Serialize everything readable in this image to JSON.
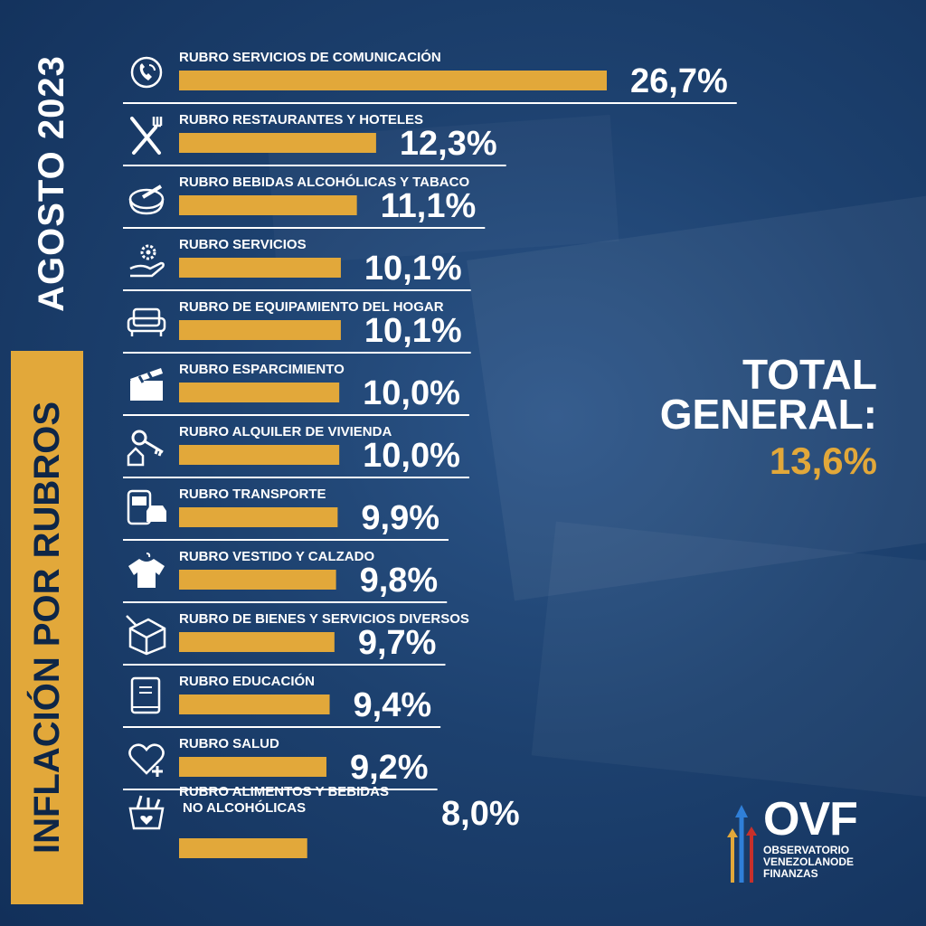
{
  "header": {
    "period": "AGOSTO 2023",
    "title": "INFLACIÓN POR RUBROS"
  },
  "total": {
    "label": "TOTAL GENERAL:",
    "value": "13,6%"
  },
  "logo": {
    "mark": "OVF",
    "line1": "OBSERVATORIO",
    "line2": "VENEZOLANODE",
    "line3": "FINANZAS"
  },
  "colors": {
    "bar": "#e2a83a",
    "background": "#1d416f",
    "text": "#ffffff"
  },
  "chart_data": {
    "type": "bar",
    "orientation": "horizontal",
    "title": "",
    "xlabel": "",
    "ylabel": "",
    "categories": [
      "RUBRO SERVICIOS DE COMUNICACIÓN",
      "RUBRO RESTAURANTES Y HOTELES",
      "RUBRO BEBIDAS ALCOHÓLICAS Y TABACO",
      "RUBRO SERVICIOS",
      "RUBRO DE EQUIPAMIENTO DEL HOGAR",
      "RUBRO ESPARCIMIENTO",
      "RUBRO ALQUILER DE VIVIENDA",
      "RUBRO TRANSPORTE",
      "RUBRO VESTIDO Y CALZADO",
      "RUBRO DE BIENES Y SERVICIOS DIVERSOS",
      "RUBRO EDUCACIÓN",
      "RUBRO SALUD",
      "RUBRO ALIMENTOS Y BEBIDAS NO ALCOHÓLICAS"
    ],
    "label_lines": [
      [
        "RUBRO SERVICIOS DE COMUNICACIÓN"
      ],
      [
        "RUBRO RESTAURANTES Y HOTELES"
      ],
      [
        "RUBRO BEBIDAS ALCOHÓLICAS Y TABACO"
      ],
      [
        "RUBRO SERVICIOS"
      ],
      [
        "RUBRO DE EQUIPAMIENTO DEL HOGAR"
      ],
      [
        "RUBRO ESPARCIMIENTO"
      ],
      [
        "RUBRO ALQUILER DE VIVIENDA"
      ],
      [
        "RUBRO TRANSPORTE"
      ],
      [
        "RUBRO VESTIDO Y CALZADO"
      ],
      [
        "RUBRO DE BIENES Y SERVICIOS DIVERSOS"
      ],
      [
        "RUBRO EDUCACIÓN"
      ],
      [
        "RUBRO SALUD"
      ],
      [
        "RUBRO ALIMENTOS Y BEBIDAS",
        "NO ALCOHÓLICAS"
      ]
    ],
    "values": [
      26.7,
      12.3,
      11.1,
      10.1,
      10.1,
      10.0,
      10.0,
      9.9,
      9.8,
      9.7,
      9.4,
      9.2,
      8.0
    ],
    "value_labels": [
      "26,7%",
      "12,3%",
      "11,1%",
      "10,1%",
      "10,1%",
      "10,0%",
      "10,0%",
      "9,9%",
      "9,8%",
      "9,7%",
      "9,4%",
      "9,2%",
      "8,0%"
    ],
    "icons": [
      "phone-icon",
      "utensils-icon",
      "ashtray-icon",
      "gear-hand-icon",
      "sofa-icon",
      "clapperboard-icon",
      "key-house-icon",
      "bus-car-icon",
      "shirt-icon",
      "box-icon",
      "book-icon",
      "heart-plus-icon",
      "grocery-basket-icon"
    ],
    "unit": "%"
  }
}
